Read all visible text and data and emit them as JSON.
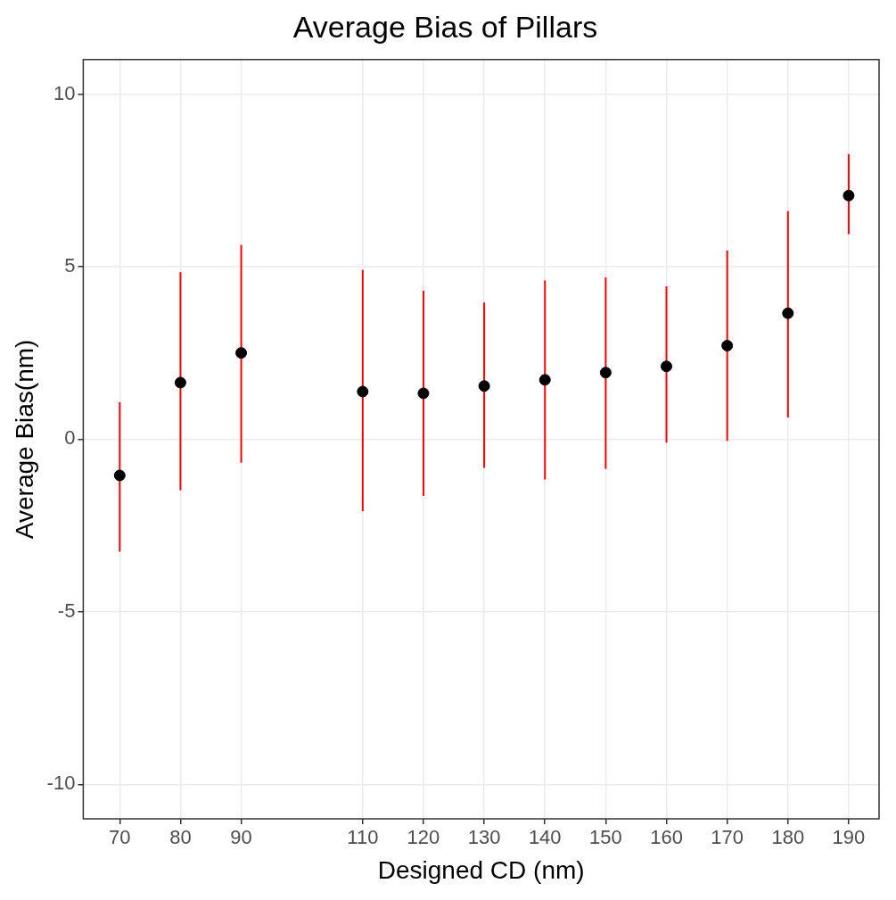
{
  "chart_data": {
    "type": "scatter",
    "title": "Average Bias of Pillars",
    "xlabel": "Designed CD (nm)",
    "ylabel": "Average Bias(nm)",
    "x": [
      70,
      80,
      90,
      110,
      120,
      130,
      140,
      150,
      160,
      170,
      180,
      190
    ],
    "series": [
      {
        "color": "#000000",
        "values": [
          -1.05,
          1.64,
          2.5,
          1.38,
          1.33,
          1.54,
          1.72,
          1.93,
          2.11,
          2.71,
          3.65,
          7.06
        ],
        "errors": [
          [
            -3.26,
            1.07
          ],
          [
            -1.48,
            4.84
          ],
          [
            -0.68,
            5.63
          ],
          [
            -2.08,
            4.9
          ],
          [
            -1.64,
            4.3
          ],
          [
            -0.83,
            3.96
          ],
          [
            -1.17,
            4.6
          ],
          [
            -0.86,
            4.69
          ],
          [
            -0.1,
            4.43
          ],
          [
            -0.05,
            5.47
          ],
          [
            0.63,
            6.61
          ],
          [
            5.94,
            8.26
          ]
        ]
      }
    ],
    "xlim": [
      64,
      195
    ],
    "xticks": [
      70,
      80,
      90,
      110,
      120,
      130,
      140,
      150,
      160,
      170,
      180,
      190
    ],
    "ylim": [
      -11,
      11
    ],
    "yticks": [
      -10,
      -5,
      0,
      5,
      10
    ],
    "grid": true,
    "legend": false,
    "marker": "circle"
  }
}
